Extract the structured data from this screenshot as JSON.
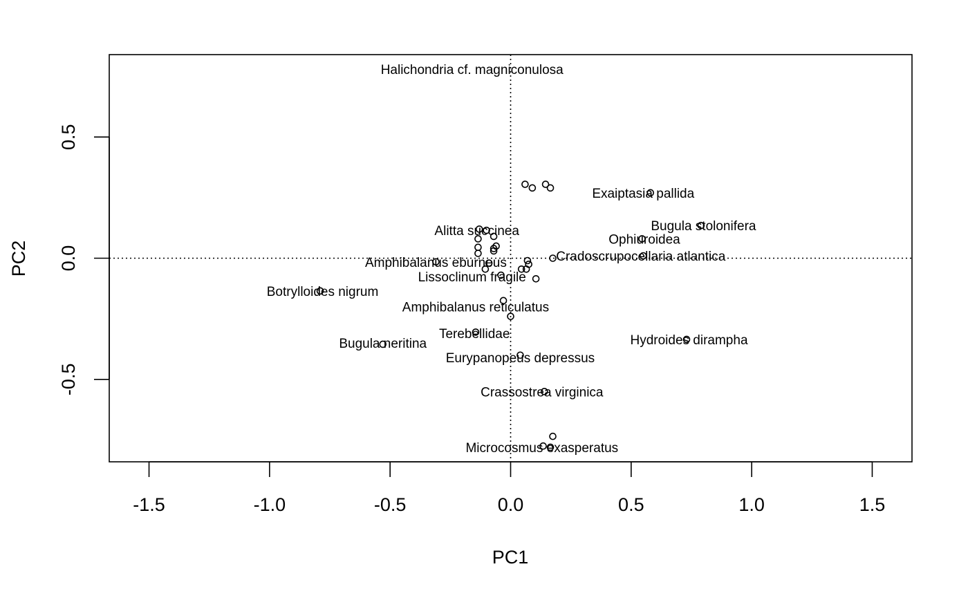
{
  "chart_data": {
    "type": "scatter",
    "title": "",
    "xlabel": "PC1",
    "ylabel": "PC2",
    "xlim": [
      -1.665,
      1.665
    ],
    "ylim": [
      -0.84,
      0.84
    ],
    "xticks": [
      -1.5,
      -1.0,
      -0.5,
      0.0,
      0.5,
      1.0,
      1.5
    ],
    "xtick_labels": [
      "-1.5",
      "-1.0",
      "-0.5",
      "0.0",
      "0.5",
      "1.0",
      "1.5"
    ],
    "yticks": [
      -0.5,
      0.0,
      0.5
    ],
    "ytick_labels": [
      "-0.5",
      "0.0",
      "0.5"
    ],
    "grid": false,
    "legend": "none",
    "reference_lines": [
      {
        "orientation": "vertical",
        "value": 0,
        "style": "dotted"
      },
      {
        "orientation": "horizontal",
        "value": 0,
        "style": "dotted"
      }
    ],
    "points": [
      {
        "x": 0.06,
        "y": 0.305
      },
      {
        "x": 0.09,
        "y": 0.29
      },
      {
        "x": 0.145,
        "y": 0.305
      },
      {
        "x": 0.165,
        "y": 0.29
      },
      {
        "x": 0.58,
        "y": 0.27
      },
      {
        "x": 0.79,
        "y": 0.135
      },
      {
        "x": 0.545,
        "y": 0.08
      },
      {
        "x": -0.13,
        "y": 0.12
      },
      {
        "x": -0.1,
        "y": 0.115
      },
      {
        "x": -0.07,
        "y": 0.09
      },
      {
        "x": -0.135,
        "y": 0.08
      },
      {
        "x": -0.135,
        "y": 0.045
      },
      {
        "x": -0.06,
        "y": 0.05
      },
      {
        "x": -0.07,
        "y": 0.04
      },
      {
        "x": -0.07,
        "y": 0.03
      },
      {
        "x": -0.135,
        "y": 0.02
      },
      {
        "x": 0.175,
        "y": 0.0
      },
      {
        "x": 0.55,
        "y": 0.01
      },
      {
        "x": 0.07,
        "y": -0.01
      },
      {
        "x": 0.075,
        "y": -0.025
      },
      {
        "x": -0.31,
        "y": -0.015
      },
      {
        "x": -0.09,
        "y": -0.02
      },
      {
        "x": -0.105,
        "y": -0.045
      },
      {
        "x": 0.045,
        "y": -0.045
      },
      {
        "x": 0.065,
        "y": -0.045
      },
      {
        "x": -0.04,
        "y": -0.07
      },
      {
        "x": 0.105,
        "y": -0.085
      },
      {
        "x": -0.79,
        "y": -0.135
      },
      {
        "x": -0.03,
        "y": -0.175
      },
      {
        "x": 0.0,
        "y": -0.24
      },
      {
        "x": -0.145,
        "y": -0.305
      },
      {
        "x": -0.53,
        "y": -0.355
      },
      {
        "x": 0.73,
        "y": -0.335
      },
      {
        "x": 0.04,
        "y": -0.4
      },
      {
        "x": 0.14,
        "y": -0.55
      },
      {
        "x": 0.175,
        "y": -0.735
      },
      {
        "x": 0.135,
        "y": -0.775
      },
      {
        "x": 0.165,
        "y": -0.78
      }
    ],
    "annotations": [
      {
        "text": "Halichondria cf. magniconulosa",
        "x": -0.16,
        "y": 0.78
      },
      {
        "text": "Exaiptasia pallida",
        "x": 0.55,
        "y": 0.27
      },
      {
        "text": "Bugula stolonifera",
        "x": 0.8,
        "y": 0.135
      },
      {
        "text": "Ophiuroidea",
        "x": 0.555,
        "y": 0.08
      },
      {
        "text": "Alitta succinea",
        "x": -0.14,
        "y": 0.115
      },
      {
        "text": "Cradoscrupocellaria atlantica",
        "x": 0.54,
        "y": 0.01
      },
      {
        "text": "Amphibalanus eburneus",
        "x": -0.31,
        "y": -0.015
      },
      {
        "text": "Lissoclinum fragile",
        "x": -0.16,
        "y": -0.075
      },
      {
        "text": "Botrylloides nigrum",
        "x": -0.78,
        "y": -0.135
      },
      {
        "text": "Amphibalanus reticulatus",
        "x": -0.145,
        "y": -0.2
      },
      {
        "text": "Terebellidae",
        "x": -0.15,
        "y": -0.31
      },
      {
        "text": "Bugula neritina",
        "x": -0.53,
        "y": -0.35
      },
      {
        "text": "Hydroides dirampha",
        "x": 0.74,
        "y": -0.335
      },
      {
        "text": "Eurypanopeus depressus",
        "x": 0.04,
        "y": -0.41
      },
      {
        "text": "Crassostrea virginica",
        "x": 0.13,
        "y": -0.55
      },
      {
        "text": "Microcosmus exasperatus",
        "x": 0.13,
        "y": -0.78
      }
    ]
  }
}
